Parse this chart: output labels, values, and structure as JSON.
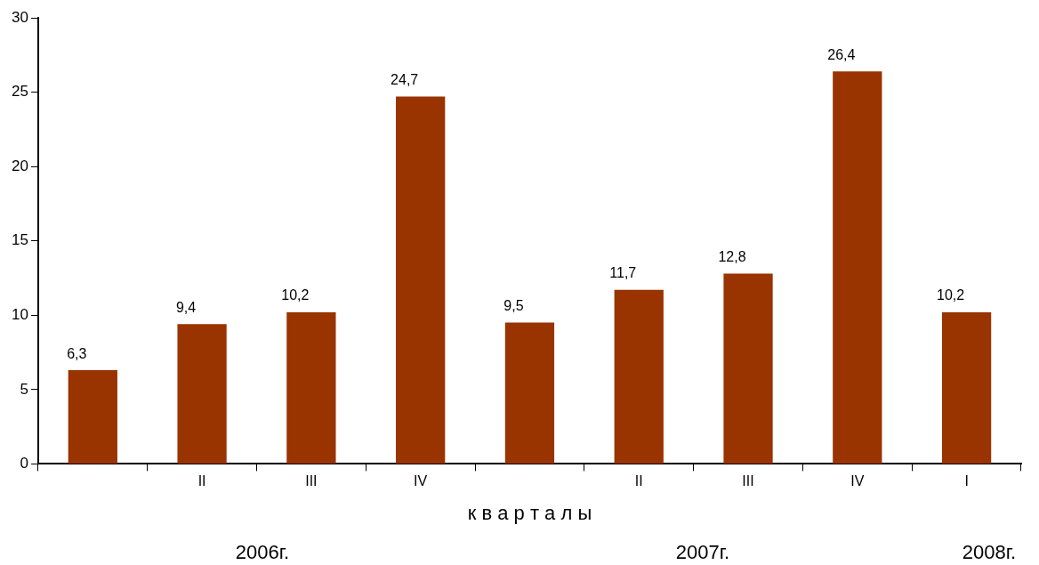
{
  "chart_data": {
    "type": "bar",
    "categories": [
      null,
      "II",
      "III",
      "IV",
      null,
      "II",
      "III",
      "IV",
      "I"
    ],
    "values": [
      6.3,
      9.4,
      10.2,
      24.7,
      9.5,
      11.7,
      12.8,
      26.4,
      10.2
    ],
    "value_labels": [
      "6,3",
      "9,4",
      "10,2",
      "24,7",
      "9,5",
      "11,7",
      "12,8",
      "26,4",
      "10,2"
    ],
    "color": "#993300",
    "ylim": [
      0,
      30
    ],
    "yticks": [
      0,
      5,
      10,
      15,
      20,
      25,
      30
    ],
    "grid": false,
    "legend": false,
    "xlabel": "к в а р т а л ы",
    "annotations": [
      "2006г.",
      "2007г.",
      "2008г."
    ]
  }
}
